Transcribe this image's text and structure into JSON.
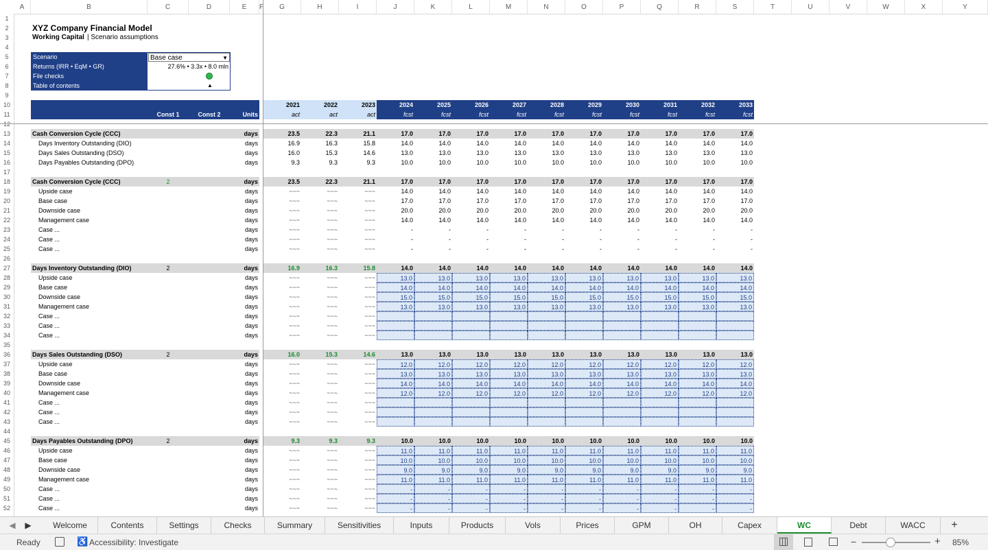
{
  "columns": [
    "A",
    "B",
    "C",
    "D",
    "E",
    "F",
    "G",
    "H",
    "I",
    "J",
    "K",
    "L",
    "M",
    "N",
    "O",
    "P",
    "Q",
    "R",
    "S",
    "T",
    "U",
    "V",
    "W",
    "X",
    "Y"
  ],
  "row_numbers": [
    "1",
    "2",
    "3",
    "4",
    "5",
    "6",
    "7",
    "8",
    "9",
    "10",
    "11",
    "12",
    "13",
    "14",
    "15",
    "16",
    "17",
    "18",
    "19",
    "20",
    "21",
    "22",
    "23",
    "24",
    "25",
    "26",
    "27",
    "28",
    "29",
    "30",
    "31",
    "32",
    "33",
    "34",
    "35",
    "36",
    "37",
    "38",
    "39",
    "40",
    "41",
    "42",
    "43",
    "44",
    "45",
    "46",
    "47",
    "48",
    "49",
    "50",
    "51",
    "52"
  ],
  "header": {
    "title": "XYZ Company Financial Model",
    "subtitle_bold": "Working Capital",
    "subtitle_rest": "| Scenario assumptions"
  },
  "infobox": {
    "scenario_label": "Scenario",
    "scenario_value": "Base case",
    "returns_label": "Returns (IRR • EqM • GR)",
    "returns_value": "27.6% • 3.3x • 8.0 mln",
    "filechecks_label": "File checks",
    "toc_label": "Table of contents",
    "toc_symbol": "▲"
  },
  "table_header": {
    "const1": "Const 1",
    "const2": "Const 2",
    "units": "Units",
    "years": [
      "2021",
      "2022",
      "2023",
      "2024",
      "2025",
      "2026",
      "2027",
      "2028",
      "2029",
      "2030",
      "2031",
      "2032",
      "2033"
    ],
    "periods": [
      "act",
      "act",
      "act",
      "fcst",
      "fcst",
      "fcst",
      "fcst",
      "fcst",
      "fcst",
      "fcst",
      "fcst",
      "fcst",
      "fcst"
    ]
  },
  "rows": [
    {
      "r": 13,
      "label": "Cash Conversion Cycle (CCC)",
      "style": "sec",
      "units": "days",
      "vals": [
        "23.5",
        "22.3",
        "21.1",
        "17.0",
        "17.0",
        "17.0",
        "17.0",
        "17.0",
        "17.0",
        "17.0",
        "17.0",
        "17.0",
        "17.0"
      ]
    },
    {
      "r": 14,
      "label": "Days Inventory Outstanding (DIO)",
      "style": "sub",
      "units": "days",
      "vals": [
        "16.9",
        "16.3",
        "15.8",
        "14.0",
        "14.0",
        "14.0",
        "14.0",
        "14.0",
        "14.0",
        "14.0",
        "14.0",
        "14.0",
        "14.0"
      ]
    },
    {
      "r": 15,
      "label": "Days Sales Outstanding (DSO)",
      "style": "sub",
      "units": "days",
      "vals": [
        "16.0",
        "15.3",
        "14.6",
        "13.0",
        "13.0",
        "13.0",
        "13.0",
        "13.0",
        "13.0",
        "13.0",
        "13.0",
        "13.0",
        "13.0"
      ]
    },
    {
      "r": 16,
      "label": "Days Payables Outstanding (DPO)",
      "style": "sub",
      "units": "days",
      "vals": [
        "9.3",
        "9.3",
        "9.3",
        "10.0",
        "10.0",
        "10.0",
        "10.0",
        "10.0",
        "10.0",
        "10.0",
        "10.0",
        "10.0",
        "10.0"
      ]
    },
    {
      "r": 18,
      "label": "Cash Conversion Cycle (CCC)",
      "style": "sec",
      "const1": "2",
      "const1green": true,
      "units": "days",
      "vals": [
        "23.5",
        "22.3",
        "21.1",
        "17.0",
        "17.0",
        "17.0",
        "17.0",
        "17.0",
        "17.0",
        "17.0",
        "17.0",
        "17.0",
        "17.0"
      ]
    },
    {
      "r": 19,
      "label": "Upside case",
      "style": "sub",
      "units": "days",
      "vals": [
        "~~~",
        "~~~",
        "~~~",
        "14.0",
        "14.0",
        "14.0",
        "14.0",
        "14.0",
        "14.0",
        "14.0",
        "14.0",
        "14.0",
        "14.0"
      ]
    },
    {
      "r": 20,
      "label": "Base case",
      "style": "sub",
      "units": "days",
      "vals": [
        "~~~",
        "~~~",
        "~~~",
        "17.0",
        "17.0",
        "17.0",
        "17.0",
        "17.0",
        "17.0",
        "17.0",
        "17.0",
        "17.0",
        "17.0"
      ]
    },
    {
      "r": 21,
      "label": "Downside case",
      "style": "sub",
      "units": "days",
      "vals": [
        "~~~",
        "~~~",
        "~~~",
        "20.0",
        "20.0",
        "20.0",
        "20.0",
        "20.0",
        "20.0",
        "20.0",
        "20.0",
        "20.0",
        "20.0"
      ]
    },
    {
      "r": 22,
      "label": "Management case",
      "style": "sub",
      "units": "days",
      "vals": [
        "~~~",
        "~~~",
        "~~~",
        "14.0",
        "14.0",
        "14.0",
        "14.0",
        "14.0",
        "14.0",
        "14.0",
        "14.0",
        "14.0",
        "14.0"
      ]
    },
    {
      "r": 23,
      "label": "Case ...",
      "style": "sub",
      "units": "days",
      "vals": [
        "~~~",
        "~~~",
        "~~~",
        "-",
        "-",
        "-",
        "-",
        "-",
        "-",
        "-",
        "-",
        "-",
        "-"
      ]
    },
    {
      "r": 24,
      "label": "Case ...",
      "style": "sub",
      "units": "days",
      "vals": [
        "~~~",
        "~~~",
        "~~~",
        "-",
        "-",
        "-",
        "-",
        "-",
        "-",
        "-",
        "-",
        "-",
        "-"
      ]
    },
    {
      "r": 25,
      "label": "Case ...",
      "style": "sub",
      "units": "days",
      "vals": [
        "~~~",
        "~~~",
        "~~~",
        "-",
        "-",
        "-",
        "-",
        "-",
        "-",
        "-",
        "-",
        "-",
        "-"
      ]
    },
    {
      "r": 27,
      "label": "Days Inventory Outstanding (DIO)",
      "style": "sec",
      "const1": "2",
      "units": "days",
      "green": true,
      "vals": [
        "16.9",
        "16.3",
        "15.8",
        "14.0",
        "14.0",
        "14.0",
        "14.0",
        "14.0",
        "14.0",
        "14.0",
        "14.0",
        "14.0",
        "14.0"
      ]
    },
    {
      "r": 28,
      "label": "Upside case",
      "style": "sub",
      "units": "days",
      "input": true,
      "vals": [
        "~~~",
        "~~~",
        "~~~",
        "13.0",
        "13.0",
        "13.0",
        "13.0",
        "13.0",
        "13.0",
        "13.0",
        "13.0",
        "13.0",
        "13.0"
      ]
    },
    {
      "r": 29,
      "label": "Base case",
      "style": "sub",
      "units": "days",
      "input": true,
      "vals": [
        "~~~",
        "~~~",
        "~~~",
        "14.0",
        "14.0",
        "14.0",
        "14.0",
        "14.0",
        "14.0",
        "14.0",
        "14.0",
        "14.0",
        "14.0"
      ]
    },
    {
      "r": 30,
      "label": "Downside case",
      "style": "sub",
      "units": "days",
      "input": true,
      "vals": [
        "~~~",
        "~~~",
        "~~~",
        "15.0",
        "15.0",
        "15.0",
        "15.0",
        "15.0",
        "15.0",
        "15.0",
        "15.0",
        "15.0",
        "15.0"
      ]
    },
    {
      "r": 31,
      "label": "Management case",
      "style": "sub",
      "units": "days",
      "input": true,
      "vals": [
        "~~~",
        "~~~",
        "~~~",
        "13.0",
        "13.0",
        "13.0",
        "13.0",
        "13.0",
        "13.0",
        "13.0",
        "13.0",
        "13.0",
        "13.0"
      ]
    },
    {
      "r": 32,
      "label": "Case ...",
      "style": "sub",
      "units": "days",
      "input": true,
      "vals": [
        "~~~",
        "~~~",
        "~~~",
        "",
        "",
        "",
        "",
        "",
        "",
        "",
        "",
        "",
        ""
      ]
    },
    {
      "r": 33,
      "label": "Case ...",
      "style": "sub",
      "units": "days",
      "input": true,
      "vals": [
        "~~~",
        "~~~",
        "~~~",
        "",
        "",
        "",
        "",
        "",
        "",
        "",
        "",
        "",
        ""
      ]
    },
    {
      "r": 34,
      "label": "Case ...",
      "style": "sub",
      "units": "days",
      "input": true,
      "vals": [
        "~~~",
        "~~~",
        "~~~",
        "",
        "",
        "",
        "",
        "",
        "",
        "",
        "",
        "",
        ""
      ]
    },
    {
      "r": 36,
      "label": "Days Sales Outstanding (DSO)",
      "style": "sec",
      "const1": "2",
      "units": "days",
      "green": true,
      "vals": [
        "16.0",
        "15.3",
        "14.6",
        "13.0",
        "13.0",
        "13.0",
        "13.0",
        "13.0",
        "13.0",
        "13.0",
        "13.0",
        "13.0",
        "13.0"
      ]
    },
    {
      "r": 37,
      "label": "Upside case",
      "style": "sub",
      "units": "days",
      "input": true,
      "vals": [
        "~~~",
        "~~~",
        "~~~",
        "12.0",
        "12.0",
        "12.0",
        "12.0",
        "12.0",
        "12.0",
        "12.0",
        "12.0",
        "12.0",
        "12.0"
      ]
    },
    {
      "r": 38,
      "label": "Base case",
      "style": "sub",
      "units": "days",
      "input": true,
      "vals": [
        "~~~",
        "~~~",
        "~~~",
        "13.0",
        "13.0",
        "13.0",
        "13.0",
        "13.0",
        "13.0",
        "13.0",
        "13.0",
        "13.0",
        "13.0"
      ]
    },
    {
      "r": 39,
      "label": "Downside case",
      "style": "sub",
      "units": "days",
      "input": true,
      "vals": [
        "~~~",
        "~~~",
        "~~~",
        "14.0",
        "14.0",
        "14.0",
        "14.0",
        "14.0",
        "14.0",
        "14.0",
        "14.0",
        "14.0",
        "14.0"
      ]
    },
    {
      "r": 40,
      "label": "Management case",
      "style": "sub",
      "units": "days",
      "input": true,
      "vals": [
        "~~~",
        "~~~",
        "~~~",
        "12.0",
        "12.0",
        "12.0",
        "12.0",
        "12.0",
        "12.0",
        "12.0",
        "12.0",
        "12.0",
        "12.0"
      ]
    },
    {
      "r": 41,
      "label": "Case ...",
      "style": "sub",
      "units": "days",
      "input": true,
      "vals": [
        "~~~",
        "~~~",
        "~~~",
        "",
        "",
        "",
        "",
        "",
        "",
        "",
        "",
        "",
        ""
      ]
    },
    {
      "r": 42,
      "label": "Case ...",
      "style": "sub",
      "units": "days",
      "input": true,
      "vals": [
        "~~~",
        "~~~",
        "~~~",
        "",
        "",
        "",
        "",
        "",
        "",
        "",
        "",
        "",
        ""
      ]
    },
    {
      "r": 43,
      "label": "Case ...",
      "style": "sub",
      "units": "days",
      "input": true,
      "vals": [
        "~~~",
        "~~~",
        "~~~",
        "",
        "",
        "",
        "",
        "",
        "",
        "",
        "",
        "",
        ""
      ]
    },
    {
      "r": 45,
      "label": "Days Payables Outstanding (DPO)",
      "style": "sec",
      "const1": "2",
      "units": "days",
      "green": true,
      "vals": [
        "9.3",
        "9.3",
        "9.3",
        "10.0",
        "10.0",
        "10.0",
        "10.0",
        "10.0",
        "10.0",
        "10.0",
        "10.0",
        "10.0",
        "10.0"
      ]
    },
    {
      "r": 46,
      "label": "Upside case",
      "style": "sub",
      "units": "days",
      "input": true,
      "vals": [
        "~~~",
        "~~~",
        "~~~",
        "11.0",
        "11.0",
        "11.0",
        "11.0",
        "11.0",
        "11.0",
        "11.0",
        "11.0",
        "11.0",
        "11.0"
      ]
    },
    {
      "r": 47,
      "label": "Base case",
      "style": "sub",
      "units": "days",
      "input": true,
      "vals": [
        "~~~",
        "~~~",
        "~~~",
        "10.0",
        "10.0",
        "10.0",
        "10.0",
        "10.0",
        "10.0",
        "10.0",
        "10.0",
        "10.0",
        "10.0"
      ]
    },
    {
      "r": 48,
      "label": "Downside case",
      "style": "sub",
      "units": "days",
      "input": true,
      "vals": [
        "~~~",
        "~~~",
        "~~~",
        "9.0",
        "9.0",
        "9.0",
        "9.0",
        "9.0",
        "9.0",
        "9.0",
        "9.0",
        "9.0",
        "9.0"
      ]
    },
    {
      "r": 49,
      "label": "Management case",
      "style": "sub",
      "units": "days",
      "input": true,
      "vals": [
        "~~~",
        "~~~",
        "~~~",
        "11.0",
        "11.0",
        "11.0",
        "11.0",
        "11.0",
        "11.0",
        "11.0",
        "11.0",
        "11.0",
        "11.0"
      ]
    },
    {
      "r": 50,
      "label": "Case ...",
      "style": "sub",
      "units": "days",
      "input": true,
      "vals": [
        "~~~",
        "~~~",
        "~~~",
        "-",
        "-",
        "-",
        "-",
        "-",
        "-",
        "-",
        "-",
        "-",
        "-"
      ]
    },
    {
      "r": 51,
      "label": "Case ...",
      "style": "sub",
      "units": "days",
      "input": true,
      "vals": [
        "~~~",
        "~~~",
        "~~~",
        "-",
        "-",
        "-",
        "-",
        "-",
        "-",
        "-",
        "-",
        "-",
        "-"
      ]
    },
    {
      "r": 52,
      "label": "Case ...",
      "style": "sub",
      "units": "days",
      "input": true,
      "vals": [
        "~~~",
        "~~~",
        "~~~",
        "-",
        "-",
        "-",
        "-",
        "-",
        "-",
        "-",
        "-",
        "-",
        "-"
      ]
    }
  ],
  "sheet_tabs": [
    "Welcome",
    "Contents",
    "Settings",
    "Checks",
    "Summary",
    "Sensitivities",
    "Inputs",
    "Products",
    "Vols",
    "Prices",
    "GPM",
    "OH",
    "Capex",
    "WC",
    "Debt",
    "WACC"
  ],
  "active_tab": "WC",
  "add_sheet": "+",
  "status": {
    "ready": "Ready",
    "accessibility": "Accessibility: Investigate",
    "zoom": "85%",
    "zoom_minus": "−",
    "zoom_plus": "+"
  },
  "icons": {
    "scroll_left": "◀",
    "scroll_right": "▶",
    "dropdown": "▼"
  },
  "colors": {
    "navy": "#1f3f87",
    "green": "#1a8c2e",
    "input_fill": "#dde9f7"
  }
}
